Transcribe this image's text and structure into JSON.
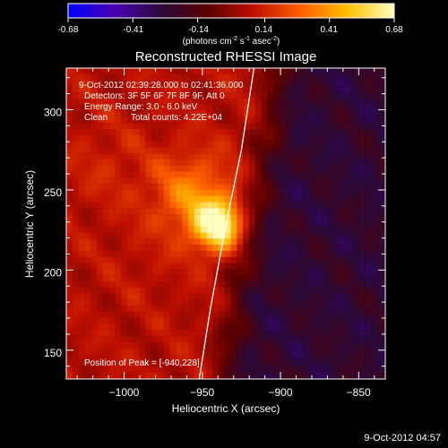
{
  "colorbar": {
    "ticks": [
      "-0.68",
      "-0.41",
      "-0.14",
      "0.14",
      "0.41",
      "0.68"
    ],
    "tick_values": [
      -0.68,
      -0.41,
      -0.14,
      0.14,
      0.41,
      0.68
    ],
    "range": [
      -0.68,
      0.68
    ],
    "unit_main": "(photons cm",
    "unit_exp1": "-2",
    "unit_mid": " s",
    "unit_exp2": "-1",
    "unit_end": " asec",
    "unit_exp3": "-2",
    "unit_close": ")",
    "colors": [
      "#0000ff",
      "#4a00b0",
      "#2a0a3a",
      "#5a0000",
      "#c01000",
      "#ff6000",
      "#ffc000",
      "#ffffc0"
    ]
  },
  "title": "Reconstructed RHESSI Image",
  "overlay": {
    "time_range": "9-Oct-2012 02:39:28.000 to 02:41:36.000",
    "detectors": "Detectors: 3F 5F 6F 7F 8F 9F, Att 0",
    "energy_range": "Energy Range: 3.0 - 6.0 keV",
    "algorithm": "Clean",
    "total_counts": "Total counts: 4.22E+04",
    "peak_position": "Position of Peak = [-940,228]"
  },
  "footer_date": "9-Oct-2012 04:57",
  "chart_data": {
    "type": "heatmap",
    "title": "Reconstructed RHESSI Image",
    "xlabel": "Heliocentric X (arcsec)",
    "ylabel": "Heliocentric Y (arcsec)",
    "xlim": [
      -1037,
      -833
    ],
    "ylim": [
      132,
      326
    ],
    "x_ticks": [
      -1000,
      -950,
      -900,
      -850
    ],
    "y_ticks": [
      150,
      200,
      250,
      300
    ],
    "x_tick_labels": [
      "−1000",
      "−950",
      "−900",
      "−850"
    ],
    "y_tick_labels": [
      "150",
      "200",
      "250",
      "300"
    ],
    "peak": {
      "x": -940,
      "y": 228,
      "value": 0.68
    },
    "secondary_sources": [
      {
        "x": -957,
        "y": 247,
        "value": 0.35
      },
      {
        "x": -1010,
        "y": 265,
        "value": 0.14
      },
      {
        "x": -985,
        "y": 205,
        "value": 0.1
      }
    ],
    "limb_curve": [
      {
        "x": -952,
        "y": 132
      },
      {
        "x": -945,
        "y": 175
      },
      {
        "x": -935,
        "y": 228
      },
      {
        "x": -925,
        "y": 275
      },
      {
        "x": -917,
        "y": 326
      }
    ],
    "limb_color": "#ffffff",
    "grid": false
  }
}
